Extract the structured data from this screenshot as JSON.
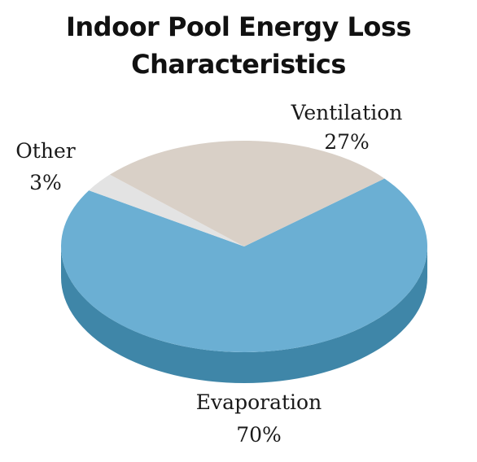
{
  "chart_data": {
    "type": "pie",
    "title_lines": [
      "Indoor Pool Energy Loss",
      "Characteristics"
    ],
    "slices": [
      {
        "label": "Evaporation",
        "value": 70,
        "value_label": "70%",
        "color": "#6bafd3",
        "side_color": "#3f86a8"
      },
      {
        "label": "Other",
        "value": 3,
        "value_label": "3%",
        "color": "#e3e3e3",
        "side_color": "#bdbdbd"
      },
      {
        "label": "Ventilation",
        "value": 27,
        "value_label": "27%",
        "color": "#d9d0c7",
        "side_color": "#b5aba1"
      }
    ],
    "legend": "none",
    "style": "3d"
  }
}
